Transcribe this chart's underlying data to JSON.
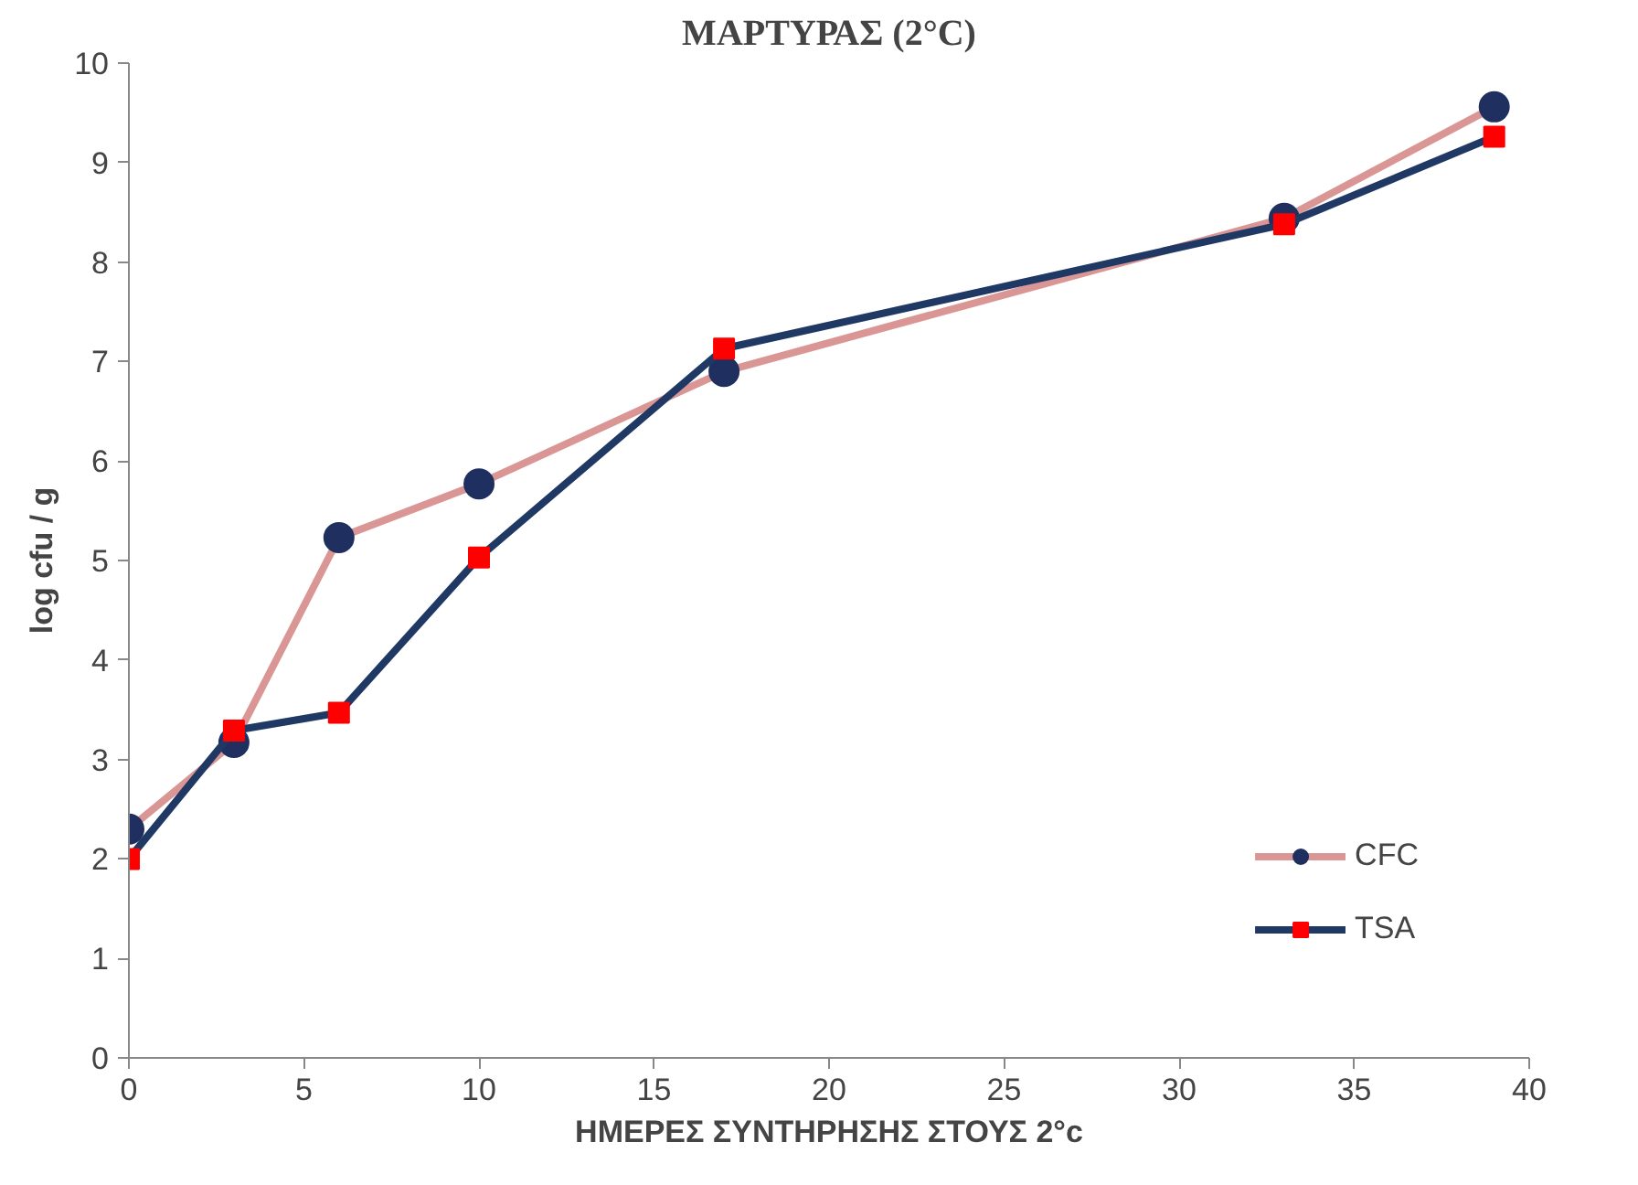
{
  "chart_data": {
    "type": "line",
    "title": "ΜΑΡΤΥΡΑΣ (2°C)",
    "xlabel": "ΗΜΕΡΕΣ ΣΥΝΤΗΡΗΣΗΣ ΣΤΟΥΣ 2°c",
    "ylabel": "log cfu / g",
    "x": [
      0,
      3,
      6,
      10,
      17,
      33,
      39
    ],
    "series": [
      {
        "name": "CFC",
        "color": "#d99694",
        "marker": "circle",
        "colors": [
          "#1f2f5f",
          "#1f2f5f",
          "#1f2f5f",
          "#1f2f5f",
          "#1f2f5f",
          "#1f2f5f",
          "#1f2f5f"
        ],
        "values": [
          2.3,
          3.17,
          5.23,
          5.77,
          6.9,
          8.44,
          9.56
        ]
      },
      {
        "name": "TSA",
        "color": "#1f3864",
        "marker": "square",
        "colors": [
          "#ff0000",
          "#ff0000",
          "#ff0000",
          "#ff0000",
          "#ff0000",
          "#ff0000",
          "#ff0000"
        ],
        "values": [
          2.0,
          3.29,
          3.47,
          5.03,
          7.13,
          8.38,
          9.26
        ]
      }
    ],
    "xlim": [
      0,
      40
    ],
    "xticks": [
      0,
      5,
      10,
      15,
      20,
      25,
      30,
      35,
      40
    ],
    "ylim": [
      0,
      10
    ],
    "yticks": [
      0,
      1,
      2,
      3,
      4,
      5,
      6,
      7,
      8,
      9,
      10
    ],
    "grid": false,
    "legend": "bottom right"
  }
}
